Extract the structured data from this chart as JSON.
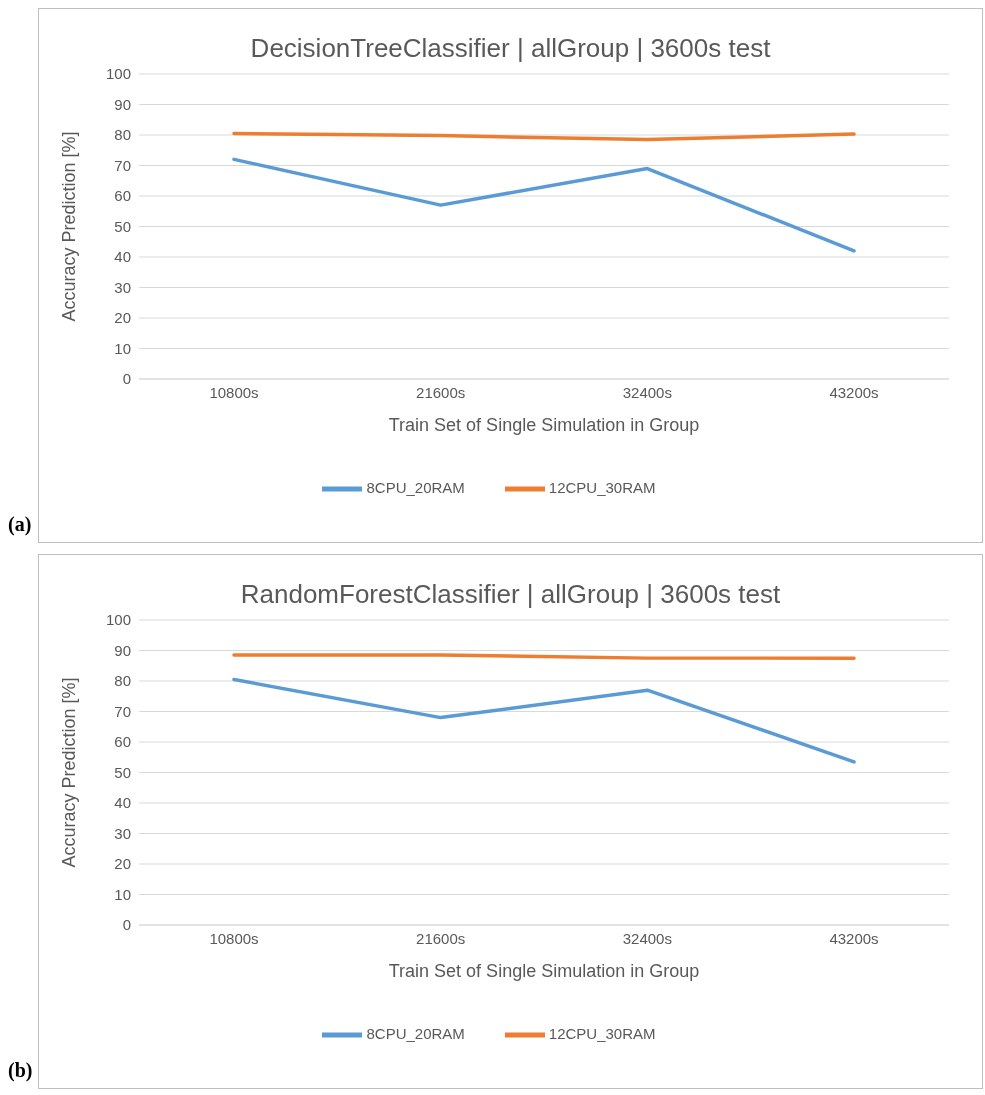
{
  "chart_data": [
    {
      "type": "line",
      "title": "DecisionTreeClassifier | allGroup | 3600s test",
      "xlabel": "Train Set of Single Simulation in Group",
      "ylabel": "Accuracy Prediction [%]",
      "categories": [
        "10800s",
        "21600s",
        "32400s",
        "43200s"
      ],
      "series": [
        {
          "name": "8CPU_20RAM",
          "color": "#5b9bd5",
          "values": [
            72,
            57,
            69,
            42
          ]
        },
        {
          "name": "12CPU_30RAM",
          "color": "#ed7d31",
          "values": [
            80.5,
            79.8,
            78.5,
            80.3
          ]
        }
      ],
      "ylim": [
        0,
        100
      ],
      "yticks": [
        0,
        10,
        20,
        30,
        40,
        50,
        60,
        70,
        80,
        90,
        100
      ],
      "grid": "y",
      "legend": "bottom",
      "marker": "none",
      "line_style": "solid",
      "annotations": [
        "(a)"
      ]
    },
    {
      "type": "line",
      "title": "RandomForestClassifier | allGroup | 3600s test",
      "xlabel": "Train Set of Single Simulation in Group",
      "ylabel": "Accuracy Prediction [%]",
      "categories": [
        "10800s",
        "21600s",
        "32400s",
        "43200s"
      ],
      "series": [
        {
          "name": "8CPU_20RAM",
          "color": "#5b9bd5",
          "values": [
            80.5,
            68,
            77,
            53.5
          ]
        },
        {
          "name": "12CPU_30RAM",
          "color": "#ed7d31",
          "values": [
            88.5,
            88.5,
            87.5,
            87.5
          ]
        }
      ],
      "ylim": [
        0,
        100
      ],
      "yticks": [
        0,
        10,
        20,
        30,
        40,
        50,
        60,
        70,
        80,
        90,
        100
      ],
      "grid": "y",
      "legend": "bottom",
      "marker": "none",
      "line_style": "solid",
      "annotations": [
        "(b)"
      ]
    }
  ]
}
